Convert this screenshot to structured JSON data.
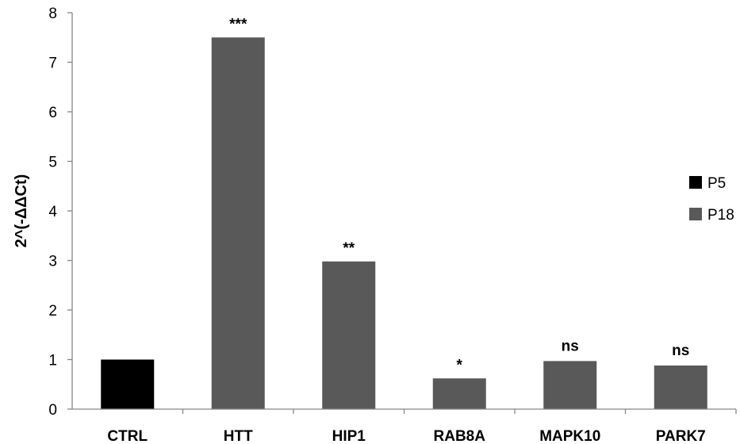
{
  "chart_data": {
    "type": "bar",
    "ylabel": "2^(-ΔΔCt)",
    "xlabel": "",
    "title": "",
    "ylim": [
      0,
      8
    ],
    "yticks": [
      0,
      1,
      2,
      3,
      4,
      5,
      6,
      7,
      8
    ],
    "grid": false,
    "legend_position": "right",
    "legend": [
      {
        "name": "P5",
        "color": "#000000"
      },
      {
        "name": "P18",
        "color": "#595959"
      }
    ],
    "bars": [
      {
        "category": "CTRL",
        "value": 1.0,
        "series": "P5",
        "annotation": ""
      },
      {
        "category": "HTT",
        "value": 7.5,
        "series": "P18",
        "annotation": "***"
      },
      {
        "category": "HIP1",
        "value": 2.98,
        "series": "P18",
        "annotation": "**"
      },
      {
        "category": "RAB8A",
        "value": 0.62,
        "series": "P18",
        "annotation": "*"
      },
      {
        "category": "MAPK10",
        "value": 0.97,
        "series": "P18",
        "annotation": "ns"
      },
      {
        "category": "PARK7",
        "value": 0.88,
        "series": "P18",
        "annotation": "ns"
      }
    ]
  }
}
